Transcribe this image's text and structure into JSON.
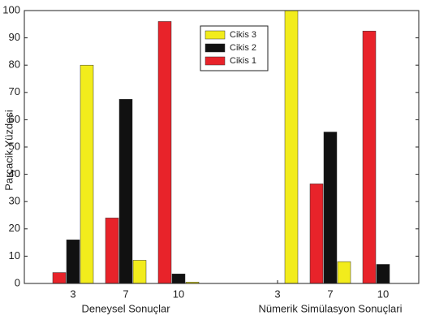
{
  "chart_data": {
    "type": "bar",
    "ylabel": "Parçacik Yüzdesi",
    "categories": [
      "3",
      "7",
      "10",
      null,
      "3",
      "7",
      "10"
    ],
    "group_labels": [
      "Deneysel Sonuçlar",
      "Nümerik Simülasyon Sonuçlari"
    ],
    "series": [
      {
        "name": "Cikis 3",
        "color": "#f2ec1c",
        "values": [
          80,
          8.5,
          0.5,
          null,
          100,
          8,
          0
        ]
      },
      {
        "name": "Cikis 2",
        "color": "#111111",
        "values": [
          16,
          67.5,
          3.5,
          null,
          0,
          55.5,
          7
        ]
      },
      {
        "name": "Cikis 1",
        "color": "#e8232a",
        "values": [
          4,
          24,
          96,
          null,
          0,
          36.5,
          92.5
        ]
      }
    ],
    "ylim": [
      0,
      100
    ],
    "yticks": [
      0,
      10,
      20,
      30,
      40,
      50,
      60,
      70,
      80,
      90,
      100
    ],
    "grid": false,
    "legend": "upper center"
  }
}
